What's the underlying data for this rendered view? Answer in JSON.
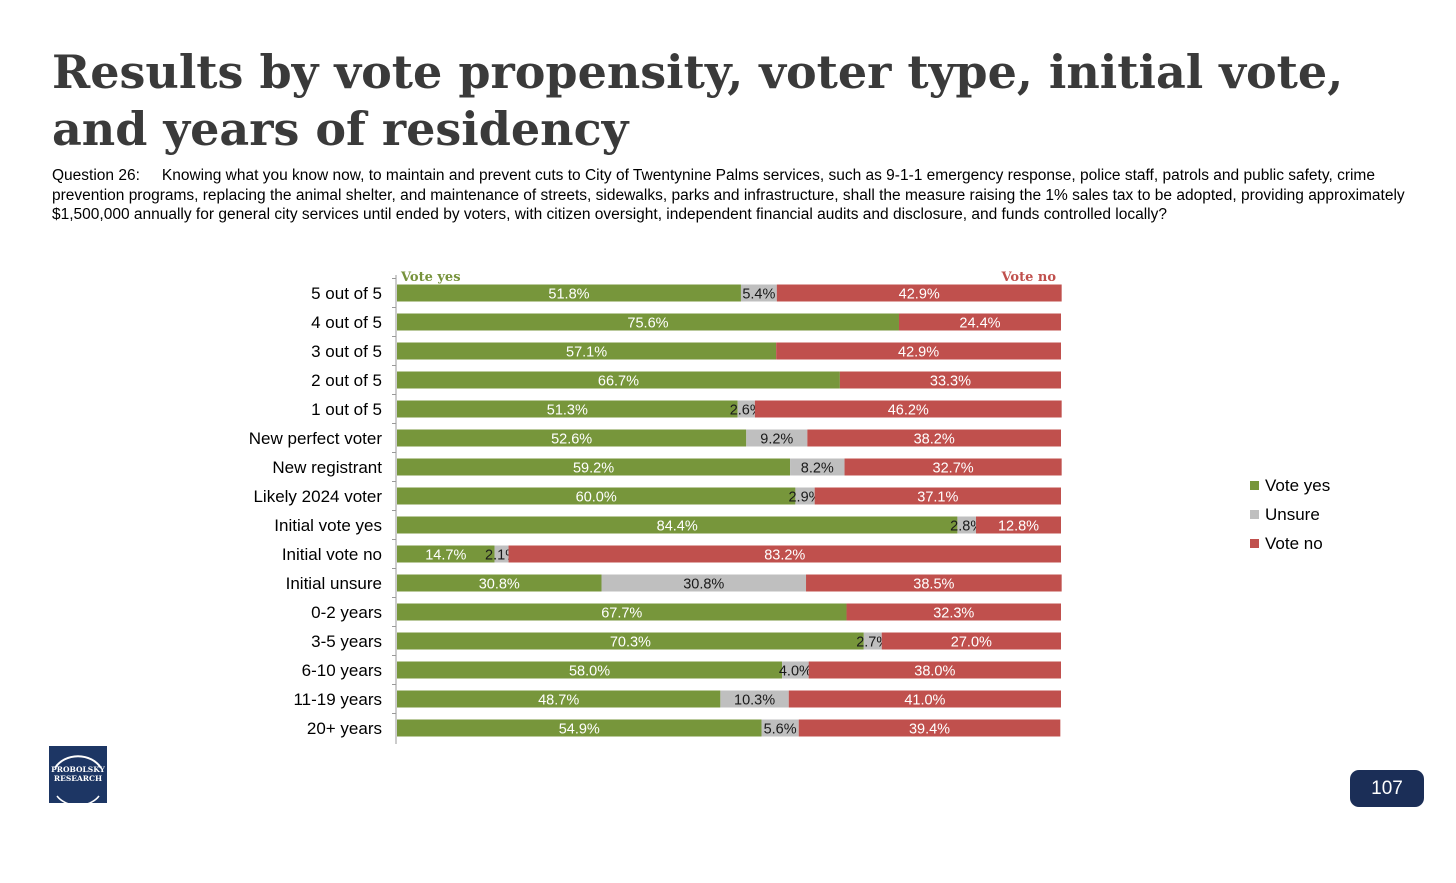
{
  "title": "Results by vote propensity, voter type, initial vote, and years of residency",
  "question": {
    "label": "Question 26:",
    "text": "Knowing what you know now, to maintain and prevent cuts to City of Twentynine Palms services, such as 9-1-1 emergency response, police staff, patrols and public safety, crime prevention programs, replacing the animal shelter, and maintenance of streets, sidewalks, parks and infrastructure, shall the measure raising the 1% sales tax to be adopted, providing approximately $1,500,000 annually for general city services until ended by voters, with citizen oversight, independent financial audits and disclosure, and funds controlled locally?"
  },
  "header_labels": {
    "left": "Vote yes",
    "right": "Vote no"
  },
  "colors": {
    "yes": "#77963b",
    "unsure": "#bfbfbf",
    "no": "#c0504d",
    "yes_header": "#77933c",
    "no_header": "#c0504d"
  },
  "legend": [
    {
      "name": "Vote yes",
      "color": "#77963b"
    },
    {
      "name": "Unsure",
      "color": "#bfbfbf"
    },
    {
      "name": "Vote no",
      "color": "#c0504d"
    }
  ],
  "chart_data": {
    "type": "bar",
    "orientation": "horizontal",
    "stacked": true,
    "categories": [
      "5 out of 5",
      "4 out of 5",
      "3 out of 5",
      "2 out of 5",
      "1 out of 5",
      "New perfect voter",
      "New registrant",
      "Likely 2024 voter",
      "Initial vote yes",
      "Initial vote no",
      "Initial unsure",
      "0-2 years",
      "3-5 years",
      "6-10 years",
      "11-19 years",
      "20+ years"
    ],
    "series": [
      {
        "name": "Vote yes",
        "values": [
          51.8,
          75.6,
          57.1,
          66.7,
          51.3,
          52.6,
          59.2,
          60.0,
          84.4,
          14.7,
          30.8,
          67.7,
          70.3,
          58.0,
          48.7,
          54.9
        ]
      },
      {
        "name": "Unsure",
        "values": [
          5.4,
          0,
          0,
          0,
          2.6,
          9.2,
          8.2,
          2.9,
          2.8,
          2.1,
          30.8,
          0,
          2.7,
          4.0,
          10.3,
          5.6
        ]
      },
      {
        "name": "Vote no",
        "values": [
          42.9,
          24.4,
          42.9,
          33.3,
          46.2,
          38.2,
          32.7,
          37.1,
          12.8,
          83.2,
          38.5,
          32.3,
          27.0,
          38.0,
          41.0,
          39.4
        ]
      }
    ],
    "labels": {
      "yes": [
        "51.8%",
        "75.6%",
        "57.1%",
        "66.7%",
        "51.3%",
        "52.6%",
        "59.2%",
        "60.0%",
        "84.4%",
        "14.7%",
        "30.8%",
        "67.7%",
        "70.3%",
        "58.0%",
        "48.7%",
        "54.9%"
      ],
      "unsure": [
        "5.4%",
        "",
        "",
        "",
        "2.6%",
        "9.2%",
        "8.2%",
        "2.9%",
        "2.8%",
        "2.1%",
        "30.8%",
        "",
        "2.7%",
        "4.0%",
        "10.3%",
        "5.6%"
      ],
      "no": [
        "42.9%",
        "24.4%",
        "42.9%",
        "33.3%",
        "46.2%",
        "38.2%",
        "32.7%",
        "37.1%",
        "12.8%",
        "83.2%",
        "38.5%",
        "32.3%",
        "27.0%",
        "38.0%",
        "41.0%",
        "39.4%"
      ]
    },
    "xlim": [
      0,
      100
    ],
    "legend_position": "right",
    "grid": false
  },
  "logo_text": "PROBOLSKY\nRESEARCH",
  "page_number": "107"
}
